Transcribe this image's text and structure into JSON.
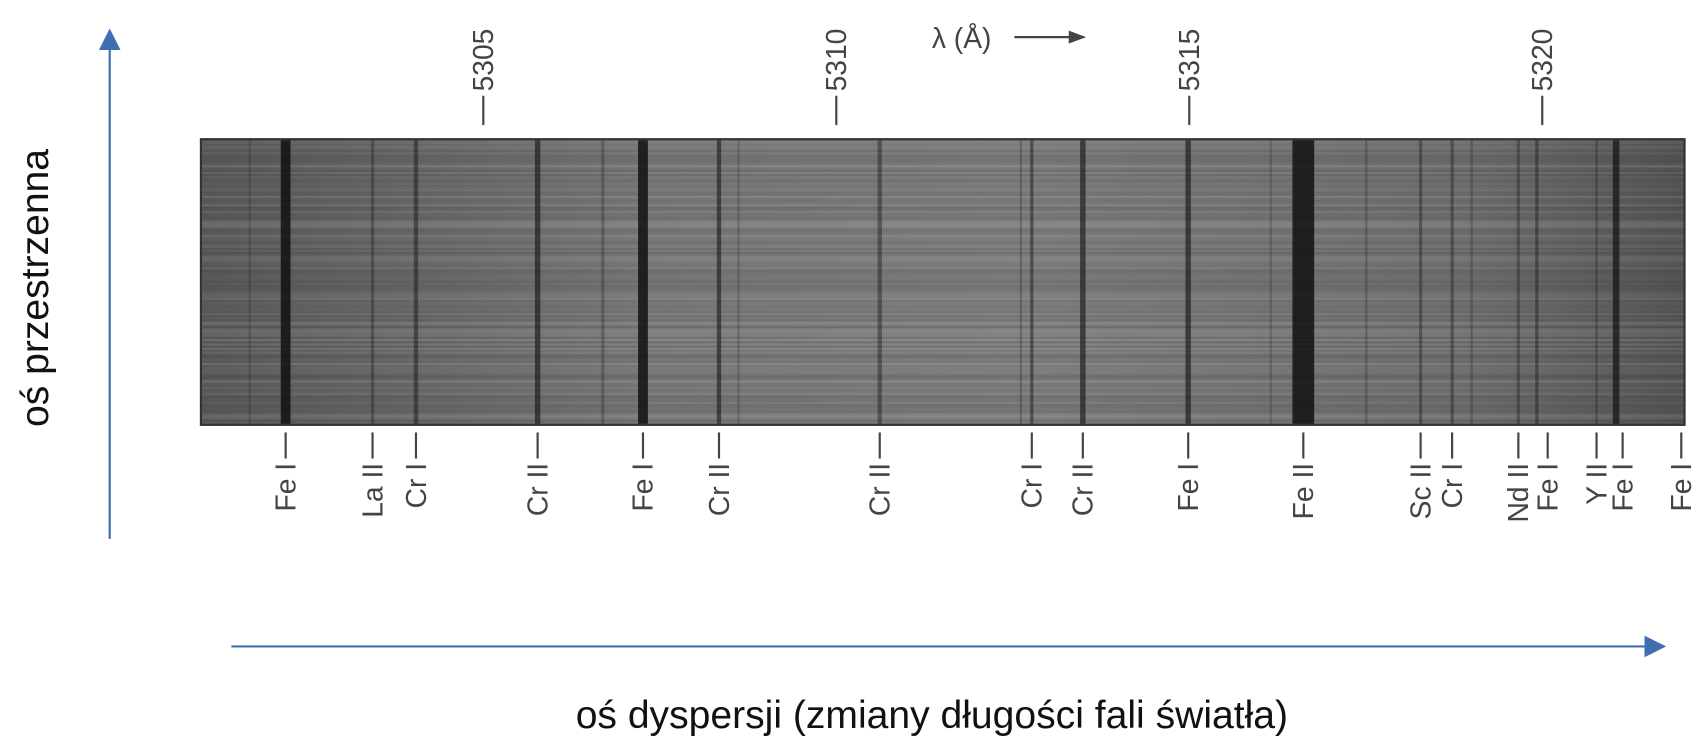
{
  "axes": {
    "vertical_label": "oś przestrzenna",
    "horizontal_label": "oś dyspersji (zmiany długości fali światła)"
  },
  "spectrum": {
    "wavelength_unit_label": "λ (Å)",
    "wavelength_ticks": [
      5305,
      5310,
      5315,
      5320
    ],
    "line_labels": [
      "Fe I",
      "La II",
      "Cr I",
      "Cr II",
      "Fe I",
      "Cr II",
      "Cr II",
      "Cr I",
      "Cr II",
      "Fe I",
      "Fe II",
      "Sc II",
      "Cr I",
      "Nd II",
      "Fe I",
      "Y II",
      "Fe I",
      "Fe I"
    ]
  }
}
